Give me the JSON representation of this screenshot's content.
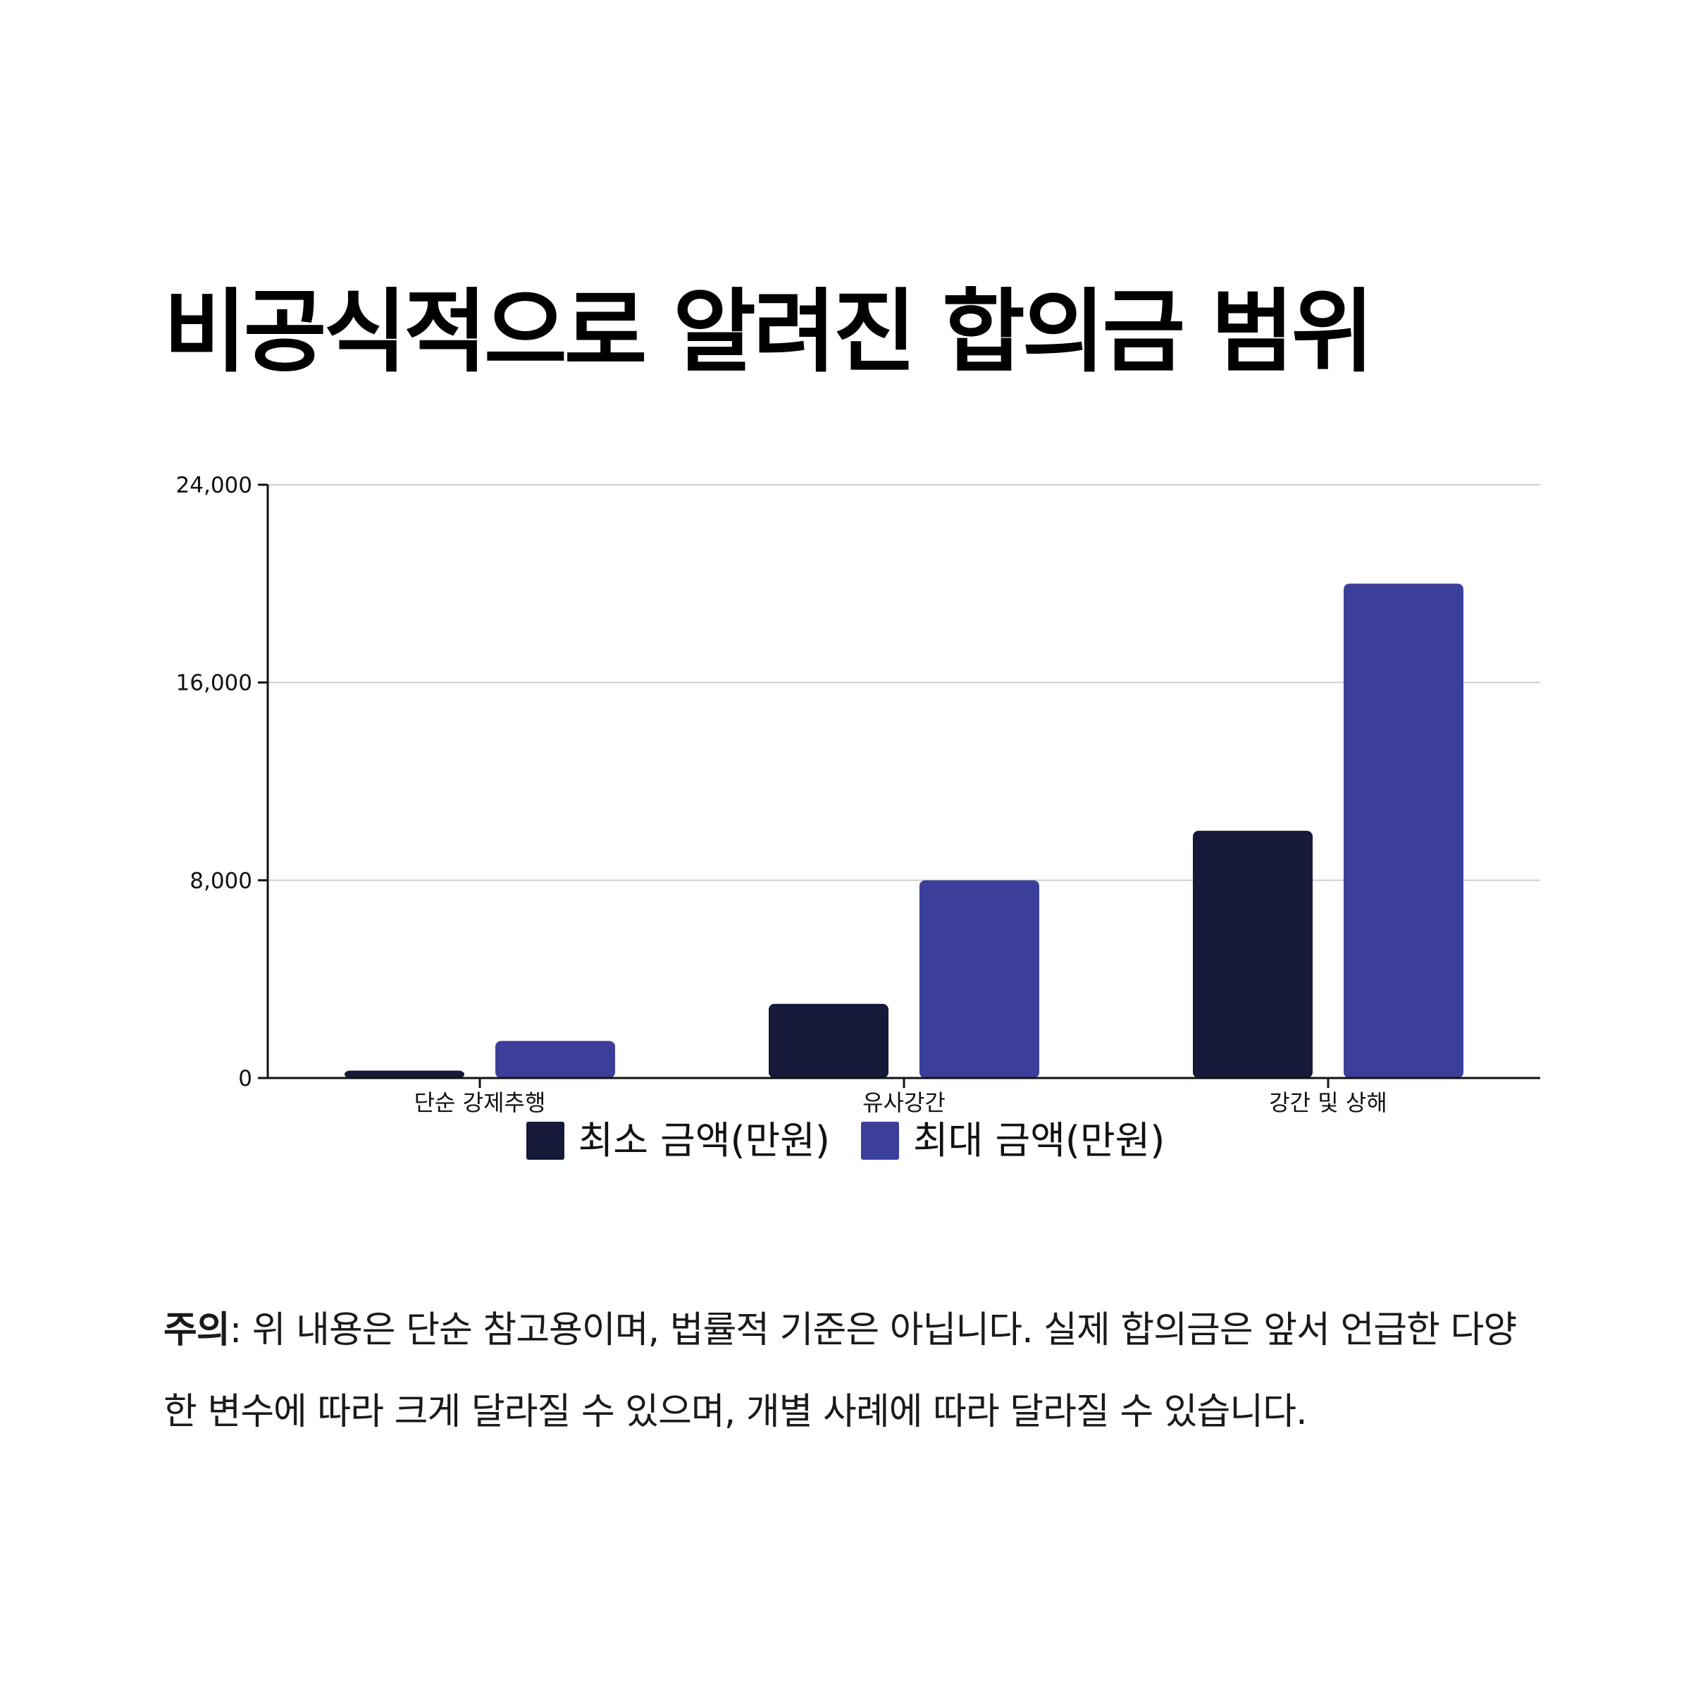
{
  "title": "비공식적으로 알려진 합의금 범위",
  "chart_data": {
    "type": "bar",
    "categories": [
      "단순 강제추행",
      "유사강간",
      "강간 및 상해"
    ],
    "series": [
      {
        "name": "최소 금액(만원)",
        "values": [
          300,
          3000,
          10000
        ],
        "color": "#161939"
      },
      {
        "name": "최대 금액(만원)",
        "values": [
          1500,
          8000,
          20000
        ],
        "color": "#3b3f9a"
      }
    ],
    "ylim": [
      0,
      24000
    ],
    "yticks": [
      0,
      8000,
      16000,
      24000
    ],
    "ytick_labels": [
      "0",
      "8,000",
      "16,000",
      "24,000"
    ],
    "grid": true,
    "legend_position": "bottom-center",
    "xlabel": "",
    "ylabel": ""
  },
  "note": {
    "label": "주의",
    "text": ": 위 내용은 단순 참고용이며, 법률적 기준은 아닙니다. 실제 합의금은 앞서 언급한 다양한 변수에 따라 크게 달라질 수 있으며, 개별 사례에 따라 달라질 수 있습니다."
  }
}
